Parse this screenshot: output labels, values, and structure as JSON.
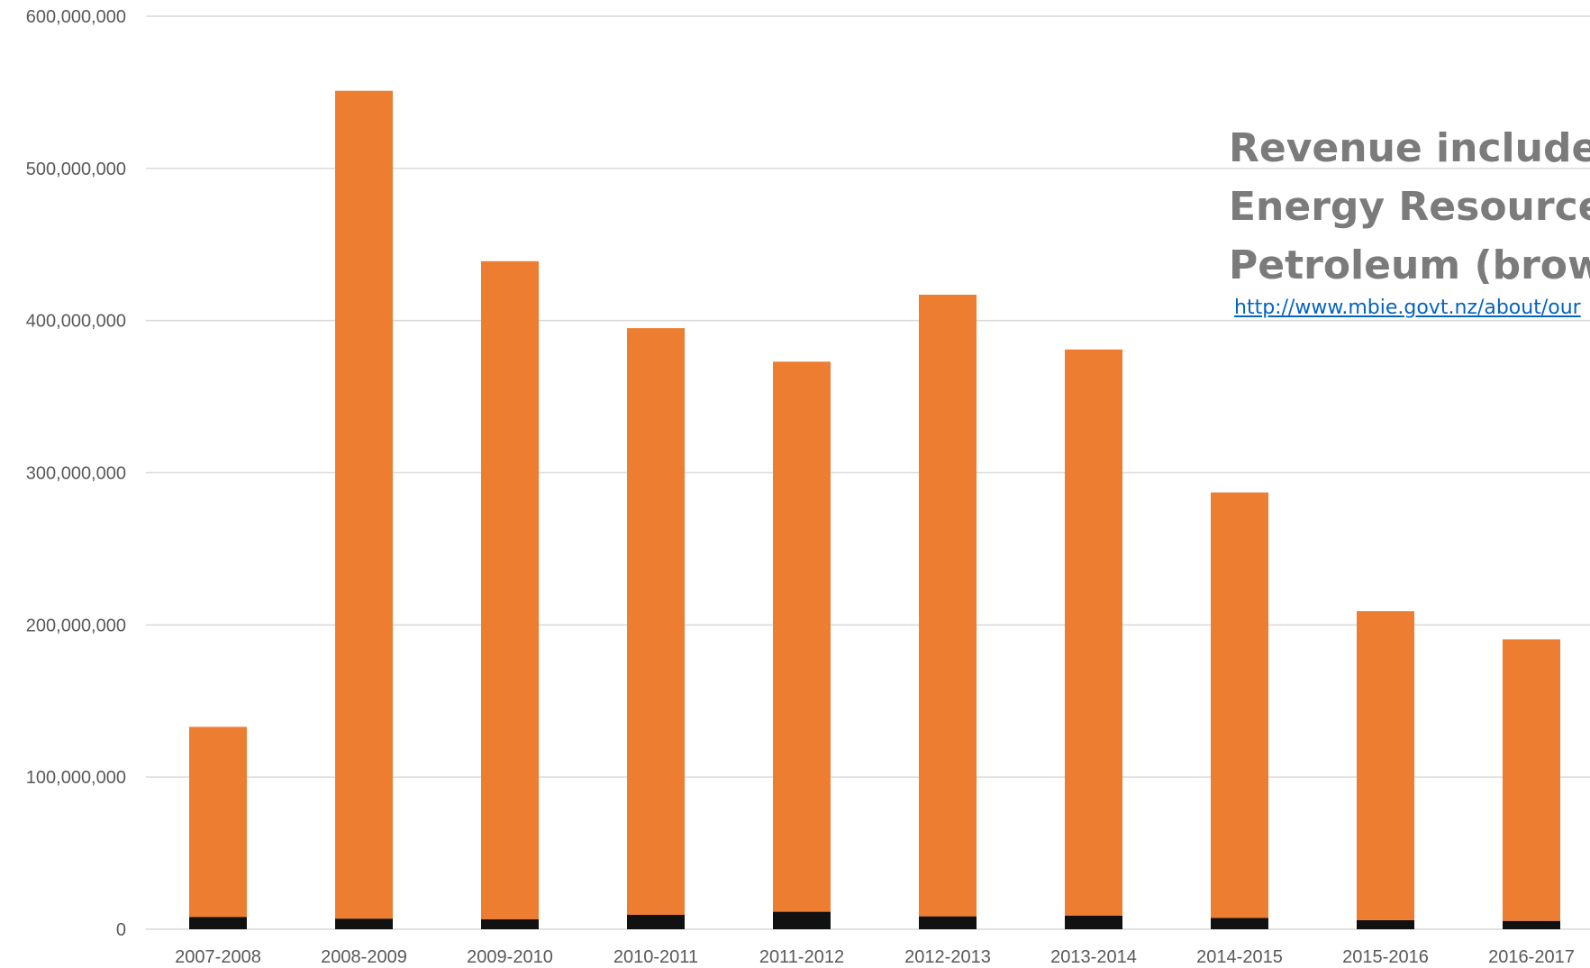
{
  "chart_data": {
    "type": "bar",
    "stacked": true,
    "categories": [
      "2007-2008",
      "2008-2009",
      "2009-2010",
      "2010-2011",
      "2011-2012",
      "2012-2013",
      "2013-2014",
      "2014-2015",
      "2015-2016",
      "2016-2017"
    ],
    "series": [
      {
        "color": "#111111",
        "values": [
          8000000,
          7000000,
          6500000,
          9500000,
          11500000,
          8500000,
          9000000,
          7500000,
          6000000,
          5500000
        ]
      },
      {
        "color": "#ed7d31",
        "values": [
          125000000,
          544000000,
          432500000,
          385500000,
          361500000,
          408500000,
          372000000,
          279500000,
          203000000,
          185000000
        ]
      }
    ],
    "yticks": [
      "0",
      "100,000,000",
      "200,000,000",
      "300,000,000",
      "400,000,000",
      "500,000,000",
      "600,000,000"
    ],
    "ylim": [
      0,
      600000000
    ],
    "grid": true,
    "legend": "none"
  },
  "annotation": {
    "lines": [
      "Revenue includes",
      "Energy Resources",
      "Petroleum (brown"
    ],
    "link": "http://www.mbie.govt.nz/about/our"
  },
  "colors": {
    "grid": "#d9d9d9",
    "axis": "#d9d9d9",
    "tick_text": "#595959",
    "annotation_text": "#7b7b7b",
    "link": "#0563c1"
  }
}
